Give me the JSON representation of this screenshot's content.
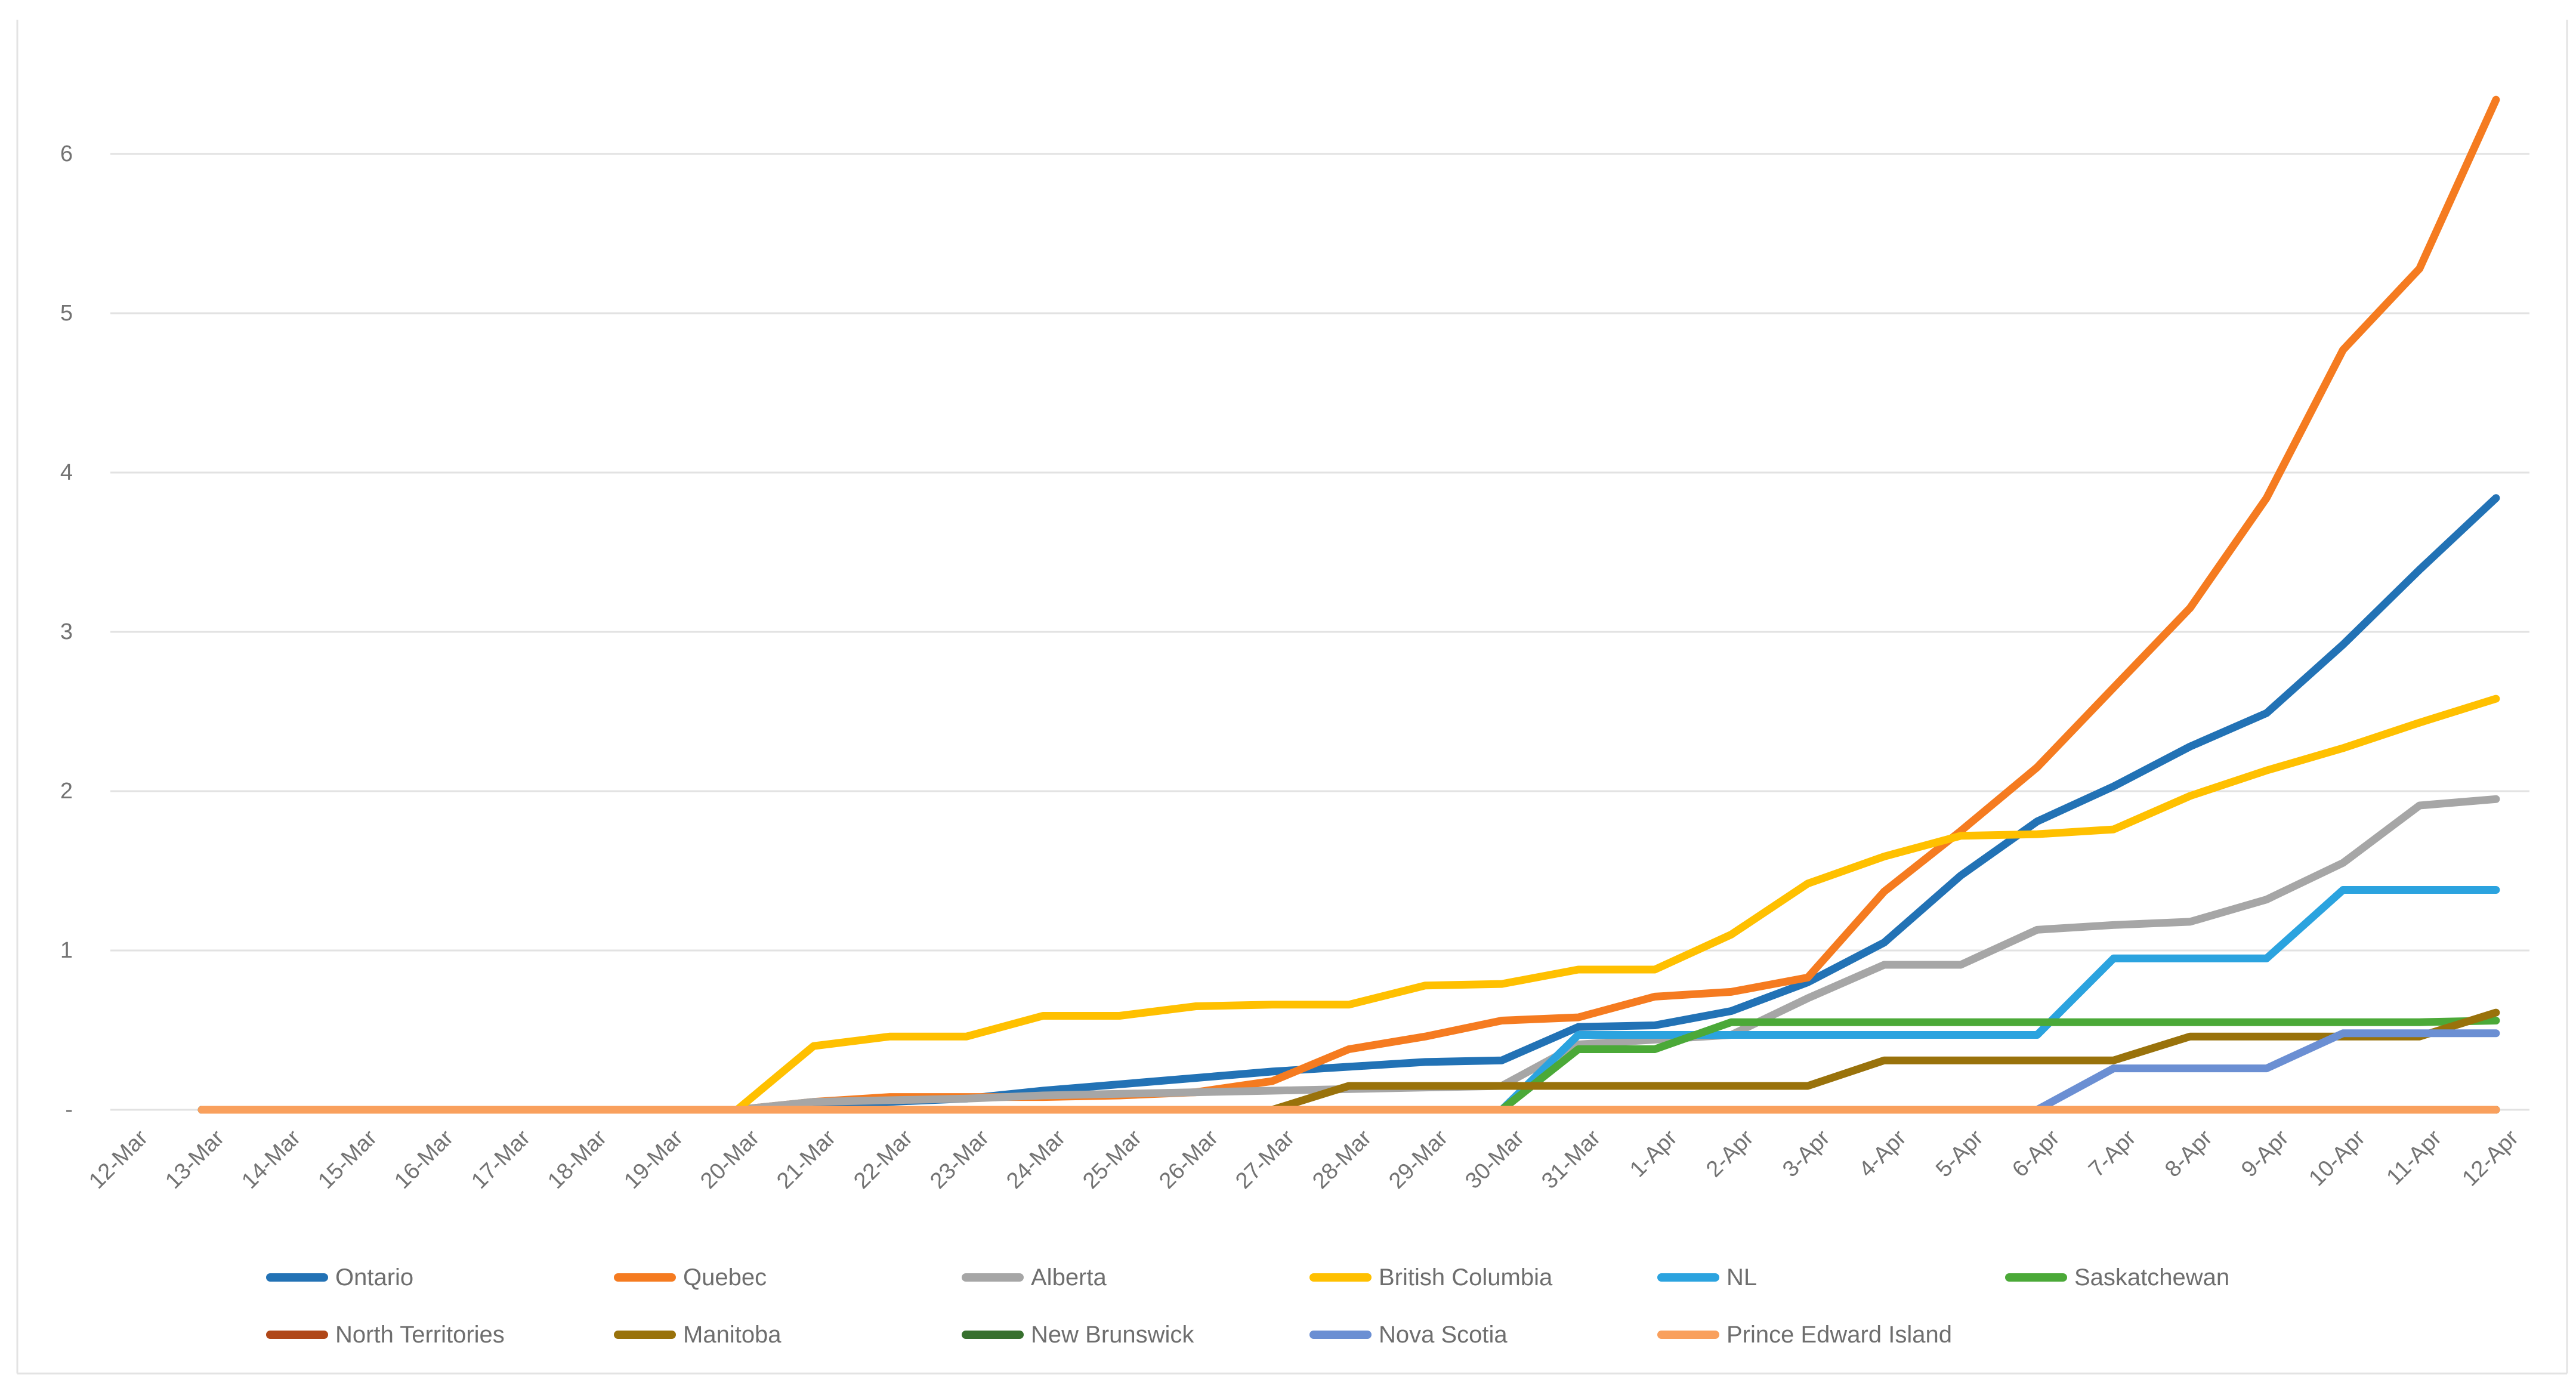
{
  "chart_data": {
    "type": "line",
    "title": "",
    "xlabel": "",
    "ylabel": "",
    "ylim": [
      0,
      6.5
    ],
    "grid": "horizontal",
    "legend_position": "bottom",
    "y_ticks": [
      "-",
      "1",
      "2",
      "3",
      "4",
      "5",
      "6"
    ],
    "categories": [
      "12-Mar",
      "13-Mar",
      "14-Mar",
      "15-Mar",
      "16-Mar",
      "17-Mar",
      "18-Mar",
      "19-Mar",
      "20-Mar",
      "21-Mar",
      "22-Mar",
      "23-Mar",
      "24-Mar",
      "25-Mar",
      "26-Mar",
      "27-Mar",
      "28-Mar",
      "29-Mar",
      "30-Mar",
      "31-Mar",
      "1-Apr",
      "2-Apr",
      "3-Apr",
      "4-Apr",
      "5-Apr",
      "6-Apr",
      "7-Apr",
      "8-Apr",
      "9-Apr",
      "10-Apr",
      "11-Apr",
      "12-Apr"
    ],
    "series": [
      {
        "name": "Ontario",
        "color": "#2272B5",
        "values": [
          null,
          0,
          0,
          0,
          0,
          0,
          0,
          0,
          0,
          0.03,
          0.05,
          0.07,
          0.12,
          0.16,
          0.2,
          0.24,
          0.27,
          0.3,
          0.31,
          0.52,
          0.53,
          0.62,
          0.8,
          1.05,
          1.47,
          1.81,
          2.03,
          2.28,
          2.49,
          2.92,
          3.39,
          3.84
        ]
      },
      {
        "name": "Quebec",
        "color": "#F57B20",
        "values": [
          null,
          0,
          0,
          0,
          0,
          0,
          0,
          0,
          0,
          0.05,
          0.08,
          0.08,
          0.08,
          0.09,
          0.11,
          0.18,
          0.38,
          0.46,
          0.56,
          0.58,
          0.71,
          0.74,
          0.83,
          1.37,
          1.75,
          2.15,
          2.65,
          3.15,
          3.84,
          4.77,
          5.28,
          6.34
        ]
      },
      {
        "name": "Alberta",
        "color": "#A6A6A6",
        "values": [
          null,
          0,
          0,
          0,
          0,
          0,
          0,
          0,
          0,
          0.05,
          0.06,
          0.07,
          0.09,
          0.1,
          0.11,
          0.12,
          0.13,
          0.14,
          0.15,
          0.41,
          0.44,
          0.47,
          0.7,
          0.91,
          0.91,
          1.13,
          1.16,
          1.18,
          1.32,
          1.55,
          1.91,
          1.95
        ]
      },
      {
        "name": "British Columbia",
        "color": "#FFC000",
        "values": [
          null,
          0,
          0,
          0,
          0,
          0,
          0,
          0,
          0,
          0.4,
          0.46,
          0.46,
          0.59,
          0.59,
          0.65,
          0.66,
          0.66,
          0.78,
          0.79,
          0.88,
          0.88,
          1.1,
          1.42,
          1.59,
          1.72,
          1.73,
          1.76,
          1.97,
          2.13,
          2.27,
          2.43,
          2.58
        ]
      },
      {
        "name": "NL",
        "color": "#2BA3DF",
        "values": [
          null,
          0,
          0,
          0,
          0,
          0,
          0,
          0,
          0,
          0,
          0,
          0,
          0,
          0,
          0,
          0,
          0,
          0,
          0,
          0.47,
          0.47,
          0.47,
          0.47,
          0.47,
          0.47,
          0.47,
          0.95,
          0.95,
          0.95,
          1.38,
          1.38,
          1.38
        ]
      },
      {
        "name": "Saskatchewan",
        "color": "#4BA938",
        "values": [
          null,
          0,
          0,
          0,
          0,
          0,
          0,
          0,
          0,
          0,
          0,
          0,
          0,
          0,
          0,
          0,
          0,
          0,
          0,
          0.38,
          0.38,
          0.55,
          0.55,
          0.55,
          0.55,
          0.55,
          0.55,
          0.55,
          0.55,
          0.55,
          0.55,
          0.56
        ]
      },
      {
        "name": "North Territories",
        "color": "#B04718",
        "values": [
          null,
          0,
          0,
          0,
          0,
          0,
          0,
          0,
          0,
          0,
          0,
          0,
          0,
          0,
          0,
          0,
          0,
          0,
          0,
          0,
          0,
          0,
          0,
          0,
          0,
          0,
          0,
          0,
          0,
          0,
          0,
          0
        ]
      },
      {
        "name": "Manitoba",
        "color": "#99720B",
        "values": [
          null,
          0,
          0,
          0,
          0,
          0,
          0,
          0,
          0,
          0,
          0,
          0,
          0,
          0,
          0,
          0,
          0.15,
          0.15,
          0.15,
          0.15,
          0.15,
          0.15,
          0.15,
          0.31,
          0.31,
          0.31,
          0.31,
          0.46,
          0.46,
          0.46,
          0.46,
          0.61
        ]
      },
      {
        "name": "New Brunswick",
        "color": "#37702E",
        "values": [
          null,
          0,
          0,
          0,
          0,
          0,
          0,
          0,
          0,
          0,
          0,
          0,
          0,
          0,
          0,
          0,
          0,
          0,
          0,
          0,
          0,
          0,
          0,
          0,
          0,
          0,
          0,
          0,
          0,
          0,
          0,
          0
        ]
      },
      {
        "name": "Nova Scotia",
        "color": "#6B8FD3",
        "values": [
          null,
          0,
          0,
          0,
          0,
          0,
          0,
          0,
          0,
          0,
          0,
          0,
          0,
          0,
          0,
          0,
          0,
          0,
          0,
          0,
          0,
          0,
          0,
          0,
          0,
          0,
          0.26,
          0.26,
          0.26,
          0.48,
          0.48,
          0.48
        ]
      },
      {
        "name": "Prince Edward Island",
        "color": "#F9A05D",
        "values": [
          null,
          0,
          0,
          0,
          0,
          0,
          0,
          0,
          0,
          0,
          0,
          0,
          0,
          0,
          0,
          0,
          0,
          0,
          0,
          0,
          0,
          0,
          0,
          0,
          0,
          0,
          0,
          0,
          0,
          0,
          0,
          0
        ]
      }
    ]
  },
  "layout_colors": {
    "gridline": "#E2E2E2",
    "chart_border": "#E3E3E3",
    "tick_text": "#737373",
    "legend_text": "#6E6E6E",
    "background": "#FFFFFF"
  },
  "legend": {
    "row1": [
      "Ontario",
      "Quebec",
      "Alberta",
      "British Columbia",
      "NL",
      "Saskatchewan"
    ],
    "row2": [
      "North Territories",
      "Manitoba",
      "New Brunswick",
      "Nova Scotia",
      "Prince Edward Island"
    ]
  }
}
